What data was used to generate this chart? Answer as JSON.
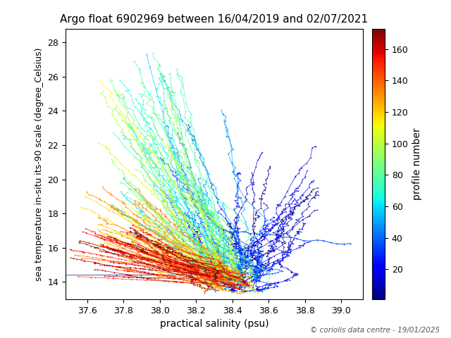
{
  "title": "Argo float 6902969 between 16/04/2019 and 02/07/2021",
  "xlabel": "practical salinity (psu)",
  "ylabel": "sea temperature in-situ its-90 scale (degree_Celsius)",
  "colorbar_label": "profile number",
  "xlim": [
    37.48,
    39.12
  ],
  "ylim": [
    13.0,
    28.8
  ],
  "xticks": [
    37.6,
    37.8,
    38.0,
    38.2,
    38.4,
    38.6,
    38.8,
    39.0
  ],
  "yticks": [
    14,
    16,
    18,
    20,
    22,
    24,
    26,
    28
  ],
  "colorbar_ticks": [
    20,
    40,
    60,
    80,
    100,
    120,
    140,
    160
  ],
  "vmin": 1,
  "vmax": 173,
  "cmap": "jet",
  "copyright_text": "© coriolis data centre - 19/01/2025",
  "num_profiles": 173,
  "seed": 7
}
